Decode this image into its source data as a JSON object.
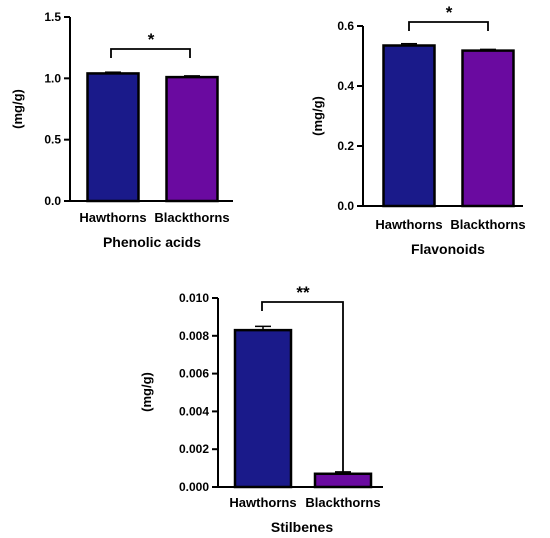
{
  "chart_data": [
    {
      "type": "bar",
      "title": "Phenolic acids",
      "ylabel": "(mg/g)",
      "categories": [
        "Hawthorns",
        "Blackthorns"
      ],
      "values": [
        1.04,
        1.01
      ],
      "errors": [
        0.01,
        0.01
      ],
      "colors": [
        "#1a1a8a",
        "#6a0aa0"
      ],
      "ylim": [
        0,
        1.5
      ],
      "yticks": [
        "0.0",
        "0.5",
        "1.0",
        "1.5"
      ],
      "significance": "*"
    },
    {
      "type": "bar",
      "title": "Flavonoids",
      "ylabel": "(mg/g)",
      "categories": [
        "Hawthorns",
        "Blackthorns"
      ],
      "values": [
        0.535,
        0.518
      ],
      "errors": [
        0.006,
        0.004
      ],
      "colors": [
        "#1a1a8a",
        "#6a0aa0"
      ],
      "ylim": [
        0,
        0.6
      ],
      "yticks": [
        "0.0",
        "0.2",
        "0.4",
        "0.6"
      ],
      "significance": "*"
    },
    {
      "type": "bar",
      "title": "Stilbenes",
      "ylabel": "(mg/g)",
      "categories": [
        "Hawthorns",
        "Blackthorns"
      ],
      "values": [
        0.0083,
        0.0007
      ],
      "errors": [
        0.0002,
        0.0001
      ],
      "colors": [
        "#1a1a8a",
        "#6a0aa0"
      ],
      "ylim": [
        0,
        0.01
      ],
      "yticks": [
        "0.000",
        "0.002",
        "0.004",
        "0.006",
        "0.008",
        "0.010"
      ],
      "significance": "**"
    }
  ]
}
